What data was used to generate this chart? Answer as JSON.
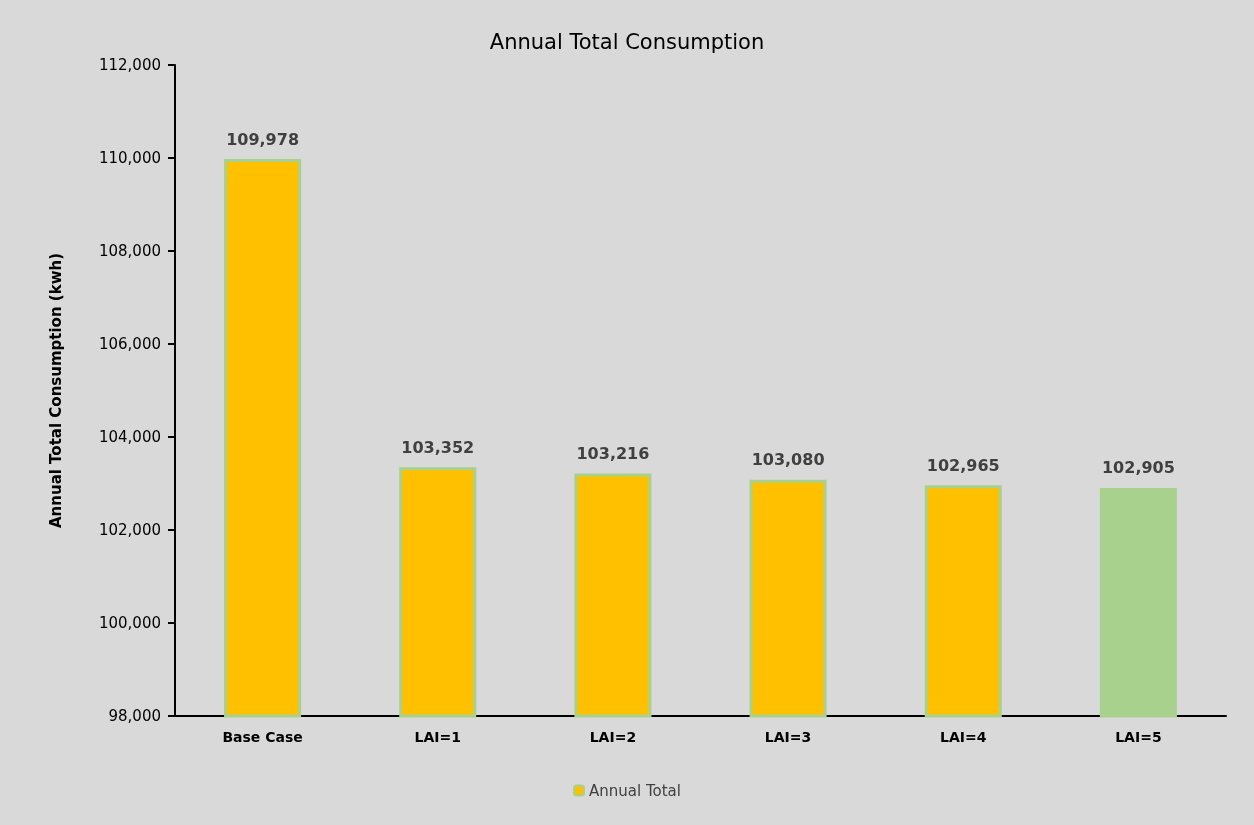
{
  "chart_data": {
    "type": "bar",
    "title": "Annual Total Consumption",
    "ylabel": "Annual Total Consumption (kwh)",
    "categories": [
      "Base Case",
      "LAI=1",
      "LAI=2",
      "LAI=3",
      "LAI=4",
      "LAI=5"
    ],
    "series": [
      {
        "name": "Annual Total",
        "color": "#ffc000",
        "colors": [
          "#ffc000",
          "#ffc000",
          "#ffc000",
          "#ffc000",
          "#ffc000",
          "#a9d18e"
        ],
        "values": [
          109978,
          103352,
          103216,
          103080,
          102965,
          102905
        ],
        "value_labels": [
          "109,978",
          "103,352",
          "103,216",
          "103,080",
          "102,965",
          "102,905"
        ]
      }
    ],
    "ylim": [
      98000,
      112000
    ],
    "yticks": [
      {
        "value": 98000,
        "label": "98,000"
      },
      {
        "value": 100000,
        "label": "100,000"
      },
      {
        "value": 102000,
        "label": "102,000"
      },
      {
        "value": 104000,
        "label": "104,000"
      },
      {
        "value": 106000,
        "label": "106,000"
      },
      {
        "value": 108000,
        "label": "108,000"
      },
      {
        "value": 110000,
        "label": "110,000"
      },
      {
        "value": 112000,
        "label": "112,000"
      }
    ],
    "grid": false,
    "legend": "bottom"
  }
}
